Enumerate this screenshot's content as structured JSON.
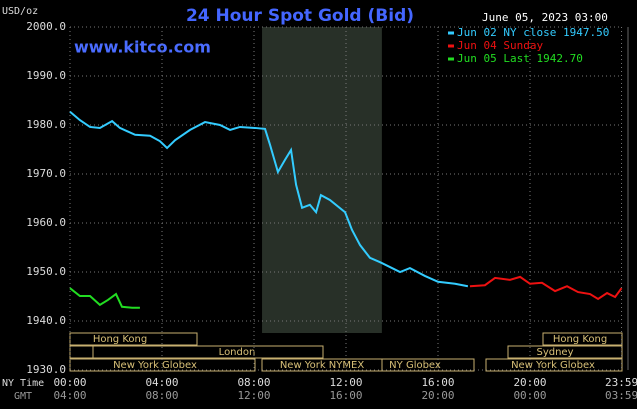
{
  "chart_data": {
    "type": "line",
    "title": "24 Hour Spot Gold (Bid)",
    "subtitle": "www.kitco.com",
    "timestamp": "June 05, 2023 03:00",
    "y_label": "USD/oz",
    "x_label": "NY Time",
    "x2_label": "GMT",
    "xlim": [
      0,
      24
    ],
    "ylim": [
      1930,
      2000
    ],
    "yticks": [
      {
        "value": 1930,
        "label": "1930.0"
      },
      {
        "value": 1940,
        "label": "1940.0"
      },
      {
        "value": 1950,
        "label": "1950.0"
      },
      {
        "value": 1960,
        "label": "1960.0"
      },
      {
        "value": 1970,
        "label": "1970.0"
      },
      {
        "value": 1980,
        "label": "1980.0"
      },
      {
        "value": 1990,
        "label": "1990.0"
      },
      {
        "value": 2000,
        "label": "2000.0"
      }
    ],
    "xticks": [
      {
        "value": 0,
        "label": "00:00"
      },
      {
        "value": 4,
        "label": "04:00"
      },
      {
        "value": 8,
        "label": "08:00"
      },
      {
        "value": 12,
        "label": "12:00"
      },
      {
        "value": 16,
        "label": "16:00"
      },
      {
        "value": 20,
        "label": "20:00"
      },
      {
        "value": 23.98,
        "label": "23:59"
      }
    ],
    "x2tick_labels": [
      "04:00",
      "08:00",
      "12:00",
      "16:00",
      "20:00",
      "00:00",
      "03:59"
    ],
    "grid": true,
    "highlight": [
      8.35,
      13.56
    ],
    "series": [
      {
        "name": "Jun 02 NY close 1947.50",
        "color": "#33ccff",
        "x": [
          0,
          0.43,
          0.87,
          1.3,
          1.83,
          2.17,
          2.83,
          3.48,
          3.91,
          4.22,
          4.57,
          5.22,
          5.87,
          6.52,
          6.96,
          7.39,
          8.04,
          8.48,
          8.7,
          9.04,
          9.35,
          9.61,
          9.83,
          10.09,
          10.43,
          10.7,
          10.91,
          11.3,
          11.96,
          12.26,
          12.61,
          13.04,
          13.48,
          14,
          14.35,
          14.78,
          15.43,
          16,
          16.74,
          17.3
        ],
        "values": [
          1982.7,
          1981,
          1979.6,
          1979.4,
          1980.8,
          1979.4,
          1978,
          1977.8,
          1976.7,
          1975.3,
          1976.9,
          1979,
          1980.6,
          1980,
          1979,
          1979.6,
          1979.4,
          1979.2,
          1975.9,
          1970.4,
          1972.9,
          1974.9,
          1967.8,
          1963.1,
          1963.7,
          1962.2,
          1965.7,
          1964.7,
          1962.2,
          1958.6,
          1955.5,
          1952.9,
          1952,
          1950.8,
          1950,
          1950.8,
          1949.2,
          1948,
          1947.6,
          1947.1
        ]
      },
      {
        "name": "Jun 04 Sunday",
        "color": "#ee1111",
        "x": [
          17.39,
          18.04,
          18.48,
          19.13,
          19.57,
          20,
          20.52,
          21.09,
          21.61,
          22.09,
          22.61,
          22.96,
          23.35,
          23.7,
          23.98
        ],
        "values": [
          1947.1,
          1947.3,
          1948.8,
          1948.4,
          1949,
          1947.6,
          1947.8,
          1946.1,
          1947.1,
          1945.9,
          1945.5,
          1944.5,
          1945.7,
          1944.9,
          1946.7
        ]
      },
      {
        "name": "Jun 05 Last 1942.70",
        "color": "#22dd22",
        "x": [
          0,
          0.43,
          0.87,
          1.3,
          1.65,
          2,
          2.26,
          2.7,
          3.04
        ],
        "values": [
          1946.7,
          1945.1,
          1945.1,
          1943.3,
          1944.3,
          1945.5,
          1942.9,
          1942.7,
          1942.7
        ]
      }
    ],
    "sessions": [
      "Hong Kong",
      "Hong Kong",
      "London",
      "Sydney",
      "New York Globex",
      "New York NYMEX",
      "NY Globex",
      "New York Globex"
    ]
  }
}
